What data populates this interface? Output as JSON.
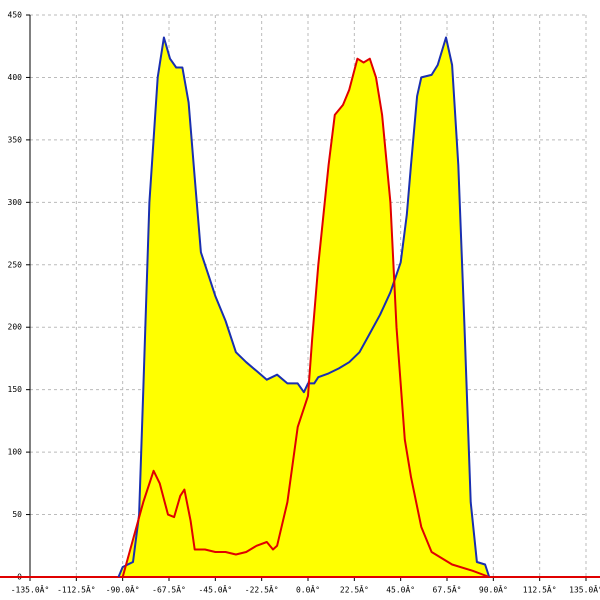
{
  "chart_data": {
    "type": "area",
    "xlim": [
      -135,
      135
    ],
    "xticks": [
      {
        "value": -135,
        "label": "-135.0Â°"
      },
      {
        "value": -112.5,
        "label": "-112.5Â°"
      },
      {
        "value": -90,
        "label": "-90.0Â°"
      },
      {
        "value": -67.5,
        "label": "-67.5Â°"
      },
      {
        "value": -45,
        "label": "-45.0Â°"
      },
      {
        "value": -22.5,
        "label": "-22.5Â°"
      },
      {
        "value": 0,
        "label": "0.0Â°"
      },
      {
        "value": 22.5,
        "label": "22.5Â°"
      },
      {
        "value": 45,
        "label": "45.0Â°"
      },
      {
        "value": 67.5,
        "label": "67.5Â°"
      },
      {
        "value": 90,
        "label": "90.0Â°"
      },
      {
        "value": 112.5,
        "label": "112.5Â°"
      },
      {
        "value": 135,
        "label": "135.0Â°"
      }
    ],
    "ylim": [
      0,
      450
    ],
    "yticks": [
      0,
      50,
      100,
      150,
      200,
      250,
      300,
      350,
      400,
      450
    ],
    "grid": true,
    "fill_color": "#ffff00",
    "series": [
      {
        "color": "#1a2fb0",
        "x": [
          -92,
          -90,
          -85,
          -82,
          -80,
          -77,
          -73,
          -70,
          -67,
          -64,
          -61,
          -58,
          -55,
          -52,
          -48,
          -45,
          -40,
          -35,
          -30,
          -25,
          -20,
          -15,
          -10,
          -5,
          -2,
          0,
          3,
          5,
          10,
          15,
          20,
          25,
          30,
          35,
          40,
          45,
          48,
          50,
          53,
          55,
          60,
          63,
          67,
          70,
          73,
          76,
          79,
          82,
          86,
          88
        ],
        "values": [
          0,
          8,
          12,
          50,
          150,
          300,
          400,
          432,
          415,
          408,
          408,
          380,
          320,
          260,
          240,
          225,
          205,
          180,
          172,
          165,
          158,
          162,
          155,
          155,
          148,
          155,
          155,
          160,
          163,
          167,
          172,
          180,
          195,
          210,
          228,
          252,
          290,
          330,
          385,
          400,
          402,
          410,
          432,
          410,
          330,
          200,
          60,
          12,
          10,
          0
        ]
      },
      {
        "color": "#e00000",
        "x": [
          -90,
          -85,
          -80,
          -75,
          -72,
          -68,
          -65,
          -62,
          -60,
          -57,
          -55,
          -50,
          -45,
          -40,
          -35,
          -30,
          -25,
          -20,
          -17,
          -15,
          -10,
          -5,
          0,
          2,
          5,
          10,
          13,
          17,
          20,
          24,
          27,
          30,
          33,
          36,
          40,
          43,
          47,
          50,
          55,
          60,
          70,
          80,
          88
        ],
        "values": [
          0,
          30,
          60,
          85,
          75,
          50,
          48,
          65,
          70,
          45,
          22,
          22,
          20,
          20,
          18,
          20,
          25,
          28,
          22,
          25,
          60,
          120,
          145,
          190,
          250,
          330,
          370,
          378,
          390,
          415,
          412,
          415,
          400,
          370,
          300,
          200,
          110,
          80,
          40,
          20,
          10,
          5,
          0
        ]
      }
    ]
  }
}
